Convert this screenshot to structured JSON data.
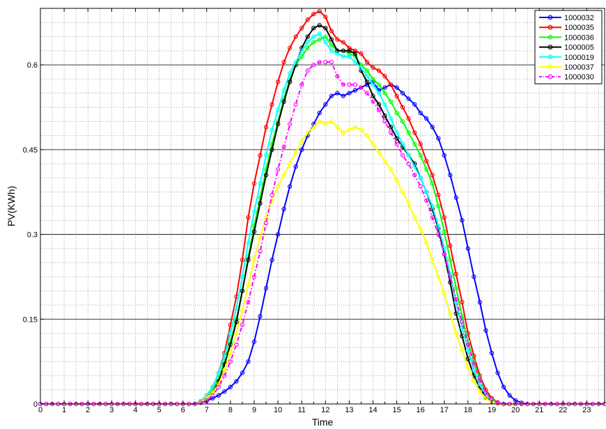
{
  "chart_data": {
    "type": "line",
    "title": "",
    "xlabel": "Time",
    "ylabel": "PV(KWh)",
    "xlim": [
      0,
      23.75
    ],
    "ylim": [
      0,
      0.7
    ],
    "xticks": [
      "0",
      "1",
      "2",
      "3",
      "4",
      "5",
      "6",
      "7",
      "8",
      "9",
      "10",
      "11",
      "12",
      "13",
      "14",
      "15",
      "16",
      "17",
      "18",
      "19",
      "20",
      "21",
      "22",
      "23"
    ],
    "yticks": [
      "0",
      "0.15",
      "0.3",
      "0.45",
      "0.6"
    ],
    "grid": "on (dotted minor grid, solid major lines at labelled y ticks)",
    "legend_position": "top-right",
    "sample_interval_hours": 0.25,
    "series": [
      {
        "name": "1000032",
        "color": "#0000ff",
        "style": "solid",
        "x_start": 6.5,
        "values": [
          0,
          0.002,
          0.005,
          0.01,
          0.015,
          0.022,
          0.03,
          0.04,
          0.055,
          0.075,
          0.11,
          0.155,
          0.205,
          0.255,
          0.3,
          0.345,
          0.385,
          0.42,
          0.45,
          0.475,
          0.495,
          0.515,
          0.53,
          0.545,
          0.55,
          0.545,
          0.55,
          0.555,
          0.56,
          0.565,
          0.57,
          0.555,
          0.56,
          0.565,
          0.56,
          0.55,
          0.54,
          0.53,
          0.515,
          0.505,
          0.49,
          0.47,
          0.44,
          0.405,
          0.365,
          0.325,
          0.275,
          0.225,
          0.18,
          0.13,
          0.09,
          0.055,
          0.03,
          0.015,
          0.006,
          0.002,
          0
        ]
      },
      {
        "name": "1000035",
        "color": "#ff0000",
        "style": "solid",
        "x_start": 6.5,
        "values": [
          0,
          0.005,
          0.015,
          0.03,
          0.055,
          0.09,
          0.14,
          0.19,
          0.255,
          0.33,
          0.39,
          0.44,
          0.49,
          0.53,
          0.57,
          0.605,
          0.63,
          0.65,
          0.665,
          0.68,
          0.69,
          0.695,
          0.685,
          0.66,
          0.645,
          0.64,
          0.63,
          0.625,
          0.62,
          0.605,
          0.595,
          0.59,
          0.58,
          0.565,
          0.545,
          0.525,
          0.505,
          0.48,
          0.46,
          0.43,
          0.405,
          0.37,
          0.33,
          0.28,
          0.23,
          0.18,
          0.125,
          0.085,
          0.05,
          0.025,
          0.01,
          0.003,
          0
        ]
      },
      {
        "name": "1000036",
        "color": "#00ff00",
        "style": "solid",
        "x_start": 6.5,
        "values": [
          0,
          0.004,
          0.012,
          0.025,
          0.045,
          0.075,
          0.11,
          0.15,
          0.2,
          0.26,
          0.315,
          0.365,
          0.415,
          0.46,
          0.5,
          0.54,
          0.575,
          0.6,
          0.615,
          0.63,
          0.64,
          0.645,
          0.65,
          0.635,
          0.625,
          0.625,
          0.62,
          0.615,
          0.6,
          0.59,
          0.575,
          0.565,
          0.55,
          0.535,
          0.515,
          0.5,
          0.48,
          0.46,
          0.44,
          0.415,
          0.39,
          0.35,
          0.305,
          0.255,
          0.205,
          0.155,
          0.11,
          0.075,
          0.045,
          0.02,
          0.008,
          0.002,
          0
        ]
      },
      {
        "name": "1000005",
        "color": "#000000",
        "style": "solid",
        "x_start": 6.5,
        "values": [
          0,
          0.003,
          0.01,
          0.02,
          0.04,
          0.07,
          0.105,
          0.145,
          0.2,
          0.255,
          0.305,
          0.355,
          0.405,
          0.45,
          0.495,
          0.535,
          0.57,
          0.6,
          0.63,
          0.65,
          0.665,
          0.67,
          0.665,
          0.645,
          0.625,
          0.625,
          0.625,
          0.62,
          0.59,
          0.57,
          0.545,
          0.53,
          0.51,
          0.49,
          0.47,
          0.455,
          0.44,
          0.425,
          0.4,
          0.375,
          0.345,
          0.31,
          0.265,
          0.215,
          0.16,
          0.12,
          0.08,
          0.05,
          0.028,
          0.012,
          0.004,
          0
        ]
      },
      {
        "name": "1000019",
        "color": "#00ffff",
        "style": "solid",
        "x_start": 6.5,
        "values": [
          0,
          0.005,
          0.015,
          0.03,
          0.055,
          0.085,
          0.125,
          0.17,
          0.225,
          0.285,
          0.34,
          0.39,
          0.44,
          0.485,
          0.52,
          0.555,
          0.585,
          0.605,
          0.625,
          0.64,
          0.65,
          0.655,
          0.64,
          0.625,
          0.62,
          0.615,
          0.615,
          0.605,
          0.595,
          0.58,
          0.565,
          0.55,
          0.53,
          0.505,
          0.48,
          0.46,
          0.44,
          0.42,
          0.4,
          0.375,
          0.35,
          0.315,
          0.275,
          0.23,
          0.18,
          0.135,
          0.095,
          0.06,
          0.035,
          0.016,
          0.006,
          0.002,
          0
        ]
      },
      {
        "name": "1000037",
        "color": "#ffff00",
        "style": "solid",
        "x_start": 6.5,
        "values": [
          0,
          0.003,
          0.01,
          0.02,
          0.035,
          0.06,
          0.09,
          0.125,
          0.165,
          0.21,
          0.255,
          0.295,
          0.33,
          0.36,
          0.385,
          0.405,
          0.425,
          0.445,
          0.465,
          0.48,
          0.49,
          0.5,
          0.495,
          0.5,
          0.49,
          0.48,
          0.485,
          0.49,
          0.485,
          0.475,
          0.46,
          0.445,
          0.43,
          0.415,
          0.395,
          0.375,
          0.355,
          0.33,
          0.31,
          0.285,
          0.255,
          0.225,
          0.195,
          0.16,
          0.125,
          0.095,
          0.065,
          0.04,
          0.022,
          0.01,
          0.003,
          0
        ]
      },
      {
        "name": "1000030",
        "color": "#ff00ff",
        "style": "dashdot",
        "x_start": 6.5,
        "values": [
          0,
          0.002,
          0.006,
          0.015,
          0.03,
          0.05,
          0.075,
          0.105,
          0.14,
          0.18,
          0.225,
          0.27,
          0.32,
          0.37,
          0.415,
          0.455,
          0.495,
          0.53,
          0.565,
          0.59,
          0.6,
          0.605,
          0.605,
          0.605,
          0.58,
          0.565,
          0.565,
          0.565,
          0.56,
          0.55,
          0.535,
          0.52,
          0.5,
          0.48,
          0.46,
          0.44,
          0.425,
          0.405,
          0.385,
          0.36,
          0.33,
          0.3,
          0.265,
          0.225,
          0.185,
          0.145,
          0.105,
          0.07,
          0.042,
          0.02,
          0.008,
          0.002,
          0
        ]
      }
    ]
  }
}
